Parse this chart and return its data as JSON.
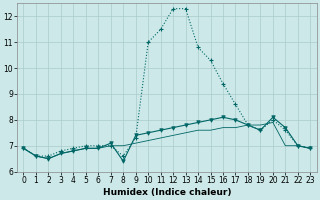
{
  "xlabel": "Humidex (Indice chaleur)",
  "xlim": [
    -0.5,
    23.5
  ],
  "ylim": [
    6,
    12.5
  ],
  "yticks": [
    6,
    7,
    8,
    9,
    10,
    11,
    12
  ],
  "xticks": [
    0,
    1,
    2,
    3,
    4,
    5,
    6,
    7,
    8,
    9,
    10,
    11,
    12,
    13,
    14,
    15,
    16,
    17,
    18,
    19,
    20,
    21,
    22,
    23
  ],
  "bg_color": "#cce8e8",
  "line_color": "#006666",
  "grid_color": "#aacccc",
  "line1_x": [
    0,
    1,
    2,
    3,
    4,
    5,
    6,
    7,
    8,
    9,
    10,
    11,
    12,
    13,
    14,
    15,
    16,
    17,
    18,
    19,
    20,
    21,
    22,
    23
  ],
  "line1_y": [
    6.9,
    6.6,
    6.6,
    6.8,
    6.9,
    7.0,
    7.0,
    7.0,
    6.6,
    7.3,
    11.0,
    11.5,
    12.3,
    12.3,
    10.8,
    10.3,
    9.4,
    8.6,
    7.8,
    7.6,
    8.0,
    7.6,
    7.0,
    6.9
  ],
  "line2_x": [
    0,
    1,
    2,
    3,
    4,
    5,
    6,
    7,
    8,
    9,
    10,
    11,
    12,
    13,
    14,
    15,
    16,
    17,
    18,
    19,
    20,
    21,
    22,
    23
  ],
  "line2_y": [
    6.9,
    6.6,
    6.5,
    6.7,
    6.8,
    6.9,
    6.9,
    7.0,
    7.0,
    7.1,
    7.2,
    7.3,
    7.4,
    7.5,
    7.6,
    7.6,
    7.7,
    7.7,
    7.8,
    7.8,
    7.9,
    7.0,
    7.0,
    6.9
  ],
  "line3_x": [
    0,
    1,
    2,
    3,
    4,
    5,
    6,
    7,
    8,
    9,
    10,
    11,
    12,
    13,
    14,
    15,
    16,
    17,
    18,
    19,
    20,
    21,
    22,
    23
  ],
  "line3_y": [
    6.9,
    6.6,
    6.5,
    6.7,
    6.8,
    6.9,
    6.9,
    7.1,
    6.4,
    7.4,
    7.5,
    7.6,
    7.7,
    7.8,
    7.9,
    8.0,
    8.1,
    8.0,
    7.8,
    7.6,
    8.1,
    7.7,
    7.0,
    6.9
  ],
  "xlabel_fontsize": 6.5,
  "tick_fontsize": 5.5
}
